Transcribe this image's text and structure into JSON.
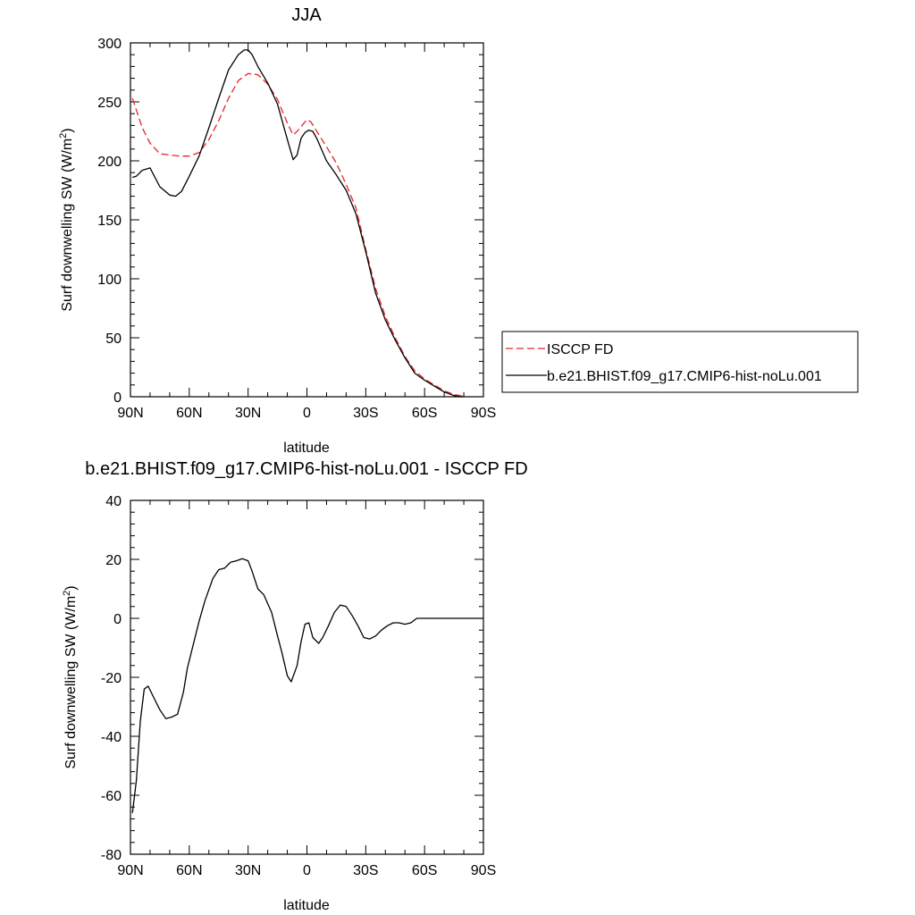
{
  "chart_data": [
    {
      "type": "line",
      "title": "JJA",
      "xlabel": "latitude",
      "ylabel": "Surf downwelling SW (W/m",
      "ylabel_sup": "2",
      "ylabel_close": ")",
      "xlim": [
        90,
        -90
      ],
      "ylim": [
        0,
        300
      ],
      "x_ticks": [
        90,
        60,
        30,
        0,
        -30,
        -60,
        -90
      ],
      "x_tick_labels": [
        "90N",
        "60N",
        "30N",
        "0",
        "30S",
        "60S",
        "90S"
      ],
      "y_ticks": [
        0,
        50,
        100,
        150,
        200,
        250,
        300
      ],
      "y_tick_labels": [
        "0",
        "50",
        "100",
        "150",
        "200",
        "250",
        "300"
      ],
      "grid": false,
      "legend_position": "right",
      "series": [
        {
          "name": "ISCCP FD",
          "color": "#e8242a",
          "dash": "dashed",
          "x": [
            89,
            87,
            84,
            80,
            75,
            70,
            65,
            60,
            55,
            50,
            45,
            40,
            35,
            30,
            25,
            20,
            15,
            10,
            7,
            5,
            2,
            0,
            -2,
            -5,
            -10,
            -15,
            -20,
            -25,
            -30,
            -35,
            -40,
            -45,
            -50,
            -55,
            -60,
            -65,
            -70,
            -75,
            -78,
            -80
          ],
          "values": [
            253,
            243,
            228,
            215,
            206,
            205,
            204,
            204,
            207,
            218,
            234,
            253,
            268,
            274,
            273,
            265,
            252,
            232,
            222,
            225,
            231,
            235,
            233,
            225,
            212,
            198,
            180,
            160,
            125,
            92,
            68,
            50,
            34,
            22,
            15,
            10,
            5,
            2,
            1,
            0
          ]
        },
        {
          "name": "b.e21.BHIST.f09_g17.CMIP6-hist-noLu.001",
          "color": "#000000",
          "dash": "solid",
          "x": [
            89,
            87,
            84,
            80,
            75,
            70,
            67,
            64,
            60,
            55,
            50,
            45,
            40,
            35,
            32,
            30,
            28,
            25,
            20,
            15,
            12,
            10,
            7,
            5,
            3,
            1,
            -1,
            -3,
            -5,
            -10,
            -15,
            -20,
            -25,
            -30,
            -35,
            -40,
            -45,
            -50,
            -55,
            -60,
            -65,
            -70,
            -75,
            -78,
            -80
          ],
          "values": [
            186,
            187,
            192,
            194,
            178,
            171,
            170,
            174,
            187,
            204,
            228,
            253,
            277,
            290,
            294,
            294,
            290,
            280,
            266,
            248,
            230,
            218,
            201,
            205,
            219,
            224,
            226,
            225,
            219,
            200,
            188,
            175,
            155,
            123,
            88,
            65,
            48,
            33,
            20,
            14,
            9,
            4,
            1,
            0,
            0
          ]
        }
      ]
    },
    {
      "type": "line",
      "title": "b.e21.BHIST.f09_g17.CMIP6-hist-noLu.001 - ISCCP FD",
      "xlabel": "latitude",
      "ylabel": "Surf downwelling SW (W/m",
      "ylabel_sup": "2",
      "ylabel_close": ")",
      "xlim": [
        90,
        -90
      ],
      "ylim": [
        -80,
        40
      ],
      "x_ticks": [
        90,
        60,
        30,
        0,
        -30,
        -60,
        -90
      ],
      "x_tick_labels": [
        "90N",
        "60N",
        "30N",
        "0",
        "30S",
        "60S",
        "90S"
      ],
      "y_ticks": [
        -80,
        -60,
        -40,
        -20,
        0,
        20,
        40
      ],
      "y_tick_labels": [
        "-80",
        "-60",
        "-40",
        "-20",
        "0",
        "20",
        "40"
      ],
      "grid": false,
      "series": [
        {
          "color": "#000000",
          "dash": "solid",
          "x": [
            89,
            87,
            85,
            83,
            81,
            78,
            75,
            72,
            69,
            66,
            63,
            61,
            58,
            55,
            52,
            48,
            45,
            42,
            39,
            36,
            33,
            30,
            28,
            25,
            22,
            18,
            15,
            13,
            10,
            8,
            5,
            3,
            1,
            -1,
            -3,
            -6,
            -8,
            -11,
            -14,
            -17,
            -20,
            -23,
            -26,
            -29,
            -32,
            -35,
            -38,
            -41,
            -44,
            -47,
            -50,
            -53,
            -56,
            -59,
            -62,
            -65,
            -68,
            -71,
            -74,
            -77,
            -80,
            -85,
            -90
          ],
          "values": [
            -66,
            -55,
            -35,
            -24,
            -23,
            -27,
            -31,
            -34,
            -33.5,
            -32.5,
            -25,
            -17,
            -9,
            -1,
            6,
            13.5,
            16.5,
            17,
            19,
            19.5,
            20.2,
            19.5,
            16,
            10,
            8,
            2,
            -6,
            -11,
            -19.5,
            -21.5,
            -16,
            -8,
            -2,
            -1.5,
            -6.5,
            -8.5,
            -6.5,
            -2.5,
            2,
            4.5,
            4,
            1,
            -2.5,
            -6.5,
            -7,
            -6,
            -4,
            -2.5,
            -1.5,
            -1.5,
            -2,
            -1.5,
            0,
            0,
            0,
            0,
            0,
            0,
            0,
            0,
            0,
            0,
            0
          ]
        }
      ]
    }
  ]
}
